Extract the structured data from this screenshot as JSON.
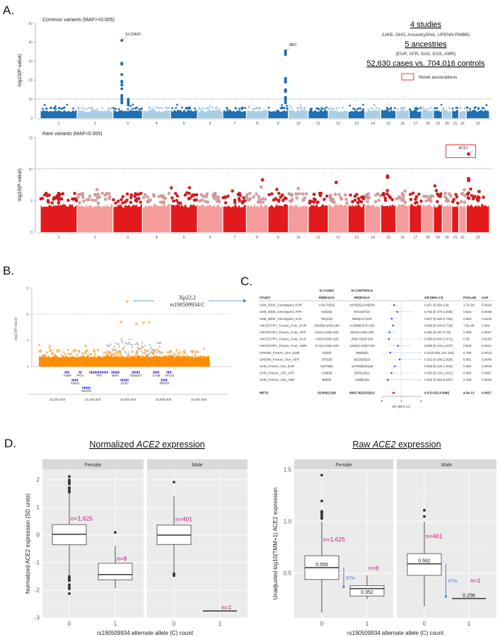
{
  "figure_labels": {
    "a": "A.",
    "b": "B.",
    "c": "C.",
    "d": "D."
  },
  "panel_a_info": {
    "studies": "4 studies",
    "studies_detail": "(UKB, GHS, AncestryDNA, UPENN-PMBB)",
    "ancestries": "5 ancestries",
    "ancestries_detail": "(EUR, AFR, SAS, EAS, AMR)",
    "sample": "52,630 cases vs. 704,016 controls",
    "legend": "Novel associations",
    "legend_color": "#e8393d"
  },
  "manhattan_axis": {
    "chromosomes": [
      "1",
      "2",
      "3",
      "4",
      "5",
      "6",
      "7",
      "8",
      "9",
      "10",
      "11",
      "12",
      "13",
      "14",
      "15",
      "16",
      "17",
      "18",
      "19",
      "20",
      "21",
      "22",
      "23"
    ],
    "chromosome_lengths_mb": [
      248,
      242,
      198,
      190,
      181,
      171,
      159,
      145,
      138,
      134,
      135,
      133,
      114,
      107,
      102,
      90,
      83,
      80,
      59,
      64,
      47,
      51,
      156
    ]
  },
  "chart_data": [
    {
      "id": "common",
      "type": "scatter",
      "title": "Common variants (MAF>=0.005)",
      "ylabel": "-log10(P-value)",
      "ylim": [
        0,
        50
      ],
      "yticks": [
        "0",
        "10",
        "20",
        "30",
        "40",
        "50"
      ],
      "threshold": 10.1,
      "colors": [
        "#1f6fb2",
        "#a9cfe6"
      ],
      "background_max": 5.5,
      "hits": [
        {
          "chr": "3",
          "frac": 0.3,
          "label": "SLC6A20",
          "values": [
            41,
            29,
            28.5,
            23,
            19.5,
            19,
            17.5,
            15.5,
            12,
            11,
            10,
            9,
            8
          ]
        },
        {
          "chr": "3",
          "frac": 0.52,
          "values": [
            10,
            9,
            8,
            7
          ]
        },
        {
          "chr": "9",
          "frac": 0.86,
          "label": "ABO",
          "values": [
            35.5,
            35,
            34,
            33.5,
            21,
            20,
            19.5,
            19,
            15,
            14.5,
            14,
            11,
            10,
            9,
            8
          ]
        }
      ]
    },
    {
      "id": "rare",
      "type": "scatter",
      "title": "Rare variants (MAF<0.005)",
      "ylabel": "-log10(P-value)",
      "ylim": [
        0,
        15
      ],
      "yticks": [
        "0",
        "5",
        "10",
        "15"
      ],
      "threshold": 10.1,
      "colors": [
        "#e31a1c",
        "#f59b9b"
      ],
      "background_max": 5.4,
      "hits": [
        {
          "chr": "23",
          "frac": 0.1,
          "label": "ACE2",
          "novel": true,
          "values": [
            12.4
          ]
        },
        {
          "chr": "23",
          "frac": 0.1,
          "values": [
            8.5,
            8.2,
            6.2
          ]
        },
        {
          "chr": "15",
          "frac": 0.45,
          "values": [
            8.9,
            8.7
          ]
        },
        {
          "chr": "8",
          "frac": 0.75,
          "values": [
            8.3
          ]
        },
        {
          "chr": "12",
          "frac": 0.4,
          "values": [
            7.9
          ]
        }
      ]
    },
    {
      "id": "regional",
      "type": "scatter",
      "ylabel": "-log10(P-value)",
      "ylim": [
        0,
        15
      ],
      "yticks": [
        "0",
        "5",
        "10",
        "15"
      ],
      "threshold": 10.1,
      "xlim": [
        15056000,
        16184000
      ],
      "xticks": [
        15200000,
        15400000,
        15600000,
        15800000,
        16000000
      ],
      "xtick_labels": [
        "15,200,000",
        "15,400,000",
        "15,600,000",
        "15,800,000",
        "16,000,000"
      ],
      "annotation_region": "Xp22.2",
      "annotation_variant": "rs190509934:C",
      "point_color": "#ff8c00",
      "ld_color": "#b3b3b3",
      "lead_points": [
        {
          "pos": 15596000,
          "p": 12.4
        },
        {
          "pos": 15560000,
          "p": 8.5
        },
        {
          "pos": 15648000,
          "p": 8.1
        },
        {
          "pos": 15688000,
          "p": 8.3
        },
        {
          "pos": 15720000,
          "p": 8.4
        }
      ],
      "genes": [
        {
          "name": "ASB9",
          "start": 15244000,
          "end": 15268000,
          "row": 0
        },
        {
          "name": "PIGA",
          "start": 15324000,
          "end": 15336000,
          "row": 0
        },
        {
          "name": "PIR",
          "start": 15384000,
          "end": 15488000,
          "row": 0
        },
        {
          "name": "BMX",
          "start": 15508000,
          "end": 15548000,
          "row": 0
        },
        {
          "name": "TMEM27",
          "start": 15624000,
          "end": 15664000,
          "row": 0
        },
        {
          "name": "CA5B",
          "start": 15744000,
          "end": 15776000,
          "row": 0
        },
        {
          "name": "AP1S2",
          "start": 15820000,
          "end": 15848000,
          "row": 0
        },
        {
          "name": "ASB11",
          "start": 15284000,
          "end": 15316000,
          "row": 1
        },
        {
          "name": "ACE2",
          "start": 15560000,
          "end": 15600000,
          "row": 1
        },
        {
          "name": "ZRSR2",
          "start": 15788000,
          "end": 15824000,
          "row": 1
        },
        {
          "name": "VEGFD",
          "start": 15344000,
          "end": 15384000,
          "row": 2
        }
      ]
    },
    {
      "id": "forest",
      "type": "table",
      "headers": {
        "n_cases": "N CASES",
        "n_controls": "N CONTROLS",
        "study": "STUDY",
        "rr_cases": "RR|RA|AA",
        "rr_controls": "RR|RA|AA",
        "or": "OR [95% CI]",
        "pvalue": "PVALUE",
        "aaf": "AAF"
      },
      "xlabel": "OR (95% CI)",
      "xlim": [
        0,
        2
      ],
      "xticks": [
        "0",
        "1",
        "2"
      ],
      "rows": [
        {
          "study": "UKB_500K_Genotyped_EUR",
          "cases": "14317|35|2",
          "controls": "420556|1244|509",
          "or": 0.627,
          "lo": 0.492,
          "hi": 0.8,
          "or_text": "0.627 [0.492,0.8]",
          "p": "1.7e-04",
          "aaf": "0.0026"
        },
        {
          "study": "UKB_500K_Genotyped_AFR",
          "cases": "616|3|1",
          "controls": "8721|67|16",
          "or": 0.783,
          "lo": 0.375,
          "hi": 1.636,
          "or_text": "0.783 [0.375,1.636]",
          "p": "0.516",
          "aaf": "0.0058"
        },
        {
          "study": "UKB_500K_Genotyped_SAS",
          "cases": "750|12|1",
          "controls": "9565|217|100",
          "or": 0.507,
          "lo": 0.325,
          "hi": 0.792,
          "or_text": "0.507 [0.325,0.792]",
          "p": "0.003",
          "aaf": "0.0219"
        },
        {
          "study": "ANCESTRY_Freeze_Four_EUR",
          "cases": "25306|<100|<100",
          "controls": "113489|327|<100",
          "or": 0.569,
          "lo": 0.444,
          "hi": 0.728,
          "or_text": "0.569 [0.444,0.728]",
          "p": "7.5e-06",
          "aaf": "0.002"
        },
        {
          "study": "ANCESTRY_Freeze_Four_AFR",
          "cases": "1622|<100|<100",
          "controls": "5641|<100|<100",
          "or": 0.392,
          "lo": 0.197,
          "hi": 0.78,
          "or_text": "0.392 [0.197,0.78]",
          "p": "0.008",
          "aaf": "0.0047"
        },
        {
          "study": "ANCESTRY_Freeze_Four_SAS",
          "cases": "<100|<100|<100",
          "controls": "250|<100|<100",
          "or": 0.359,
          "lo": 0.042,
          "hi": 3.071,
          "or_text": "0.359 [0.042,3.071]",
          "p": "0.35",
          "aaf": "0.0195"
        },
        {
          "study": "ANCESTRY_Freeze_Four_AMR",
          "cases": "3742|<100|<100",
          "controls": "12281|<100|<100",
          "or": 0.825,
          "lo": 0.443,
          "hi": 1.537,
          "or_text": "0.825 [0.443,1.537]",
          "p": "0.545",
          "aaf": "0.0021"
        },
        {
          "study": "UPENN_Freeze_One_EUR",
          "cases": "40|0|0",
          "controls": "6993|3|3",
          "or": 0.43,
          "lo": 0.001,
          "hi": 187.431,
          "or_text": "0.43 [0.001,187.431]",
          "p": "0.786",
          "aaf": "0.0013"
        },
        {
          "study": "UPENN_Freeze_One_AFR",
          "cases": "347|2|0",
          "controls": "8518|28|18",
          "or": 0.915,
          "lo": 0.286,
          "hi": 2.928,
          "or_text": "0.915 [0.286,2.928]",
          "p": "0.881",
          "aaf": "0.0045"
        },
        {
          "study": "GHS_Freeze_145_EUR",
          "cases": "5267|9|0",
          "controls": "107839|261|68",
          "or": 0.658,
          "lo": 0.432,
          "hi": 1.003,
          "or_text": "0.658 [0.432,1.003]",
          "p": "0.052",
          "aaf": "0.0019"
        },
        {
          "study": "GHS_Freeze_145_AFR",
          "cases": "128|0|0",
          "controls": "3025|14|11",
          "or": 0.493,
          "lo": 0.126,
          "hi": 1.921,
          "or_text": "0.493 [0.126,1.921]",
          "p": "0.308",
          "aaf": "0.0057"
        },
        {
          "study": "GHS_Freeze_145_AMR",
          "cases": "88|0|0",
          "controls": "1296|11|0",
          "or": 0.304,
          "lo": 0.015,
          "hi": 6.097,
          "or_text": "0.304 [0.015,6.097]",
          "p": "0.436",
          "aaf": "0.0039"
        }
      ],
      "meta": {
        "study": "META",
        "cases": "52294|122|8",
        "controls": "698174|2251|812",
        "or": 0.6,
        "lo": 0.522,
        "hi": 0.689,
        "or_text": "0.6 [0.522,0.689]",
        "p": "4.5e-13",
        "aaf": "0.0027"
      },
      "point_color": "#3b5bdb",
      "meta_color": "#e03131"
    },
    {
      "id": "normalized",
      "type": "box",
      "title_pre": "Normalized ",
      "title_gene": "ACE2",
      "title_post": " expression",
      "ylabel": "Normalized ACE2 expression (SD units)",
      "xlabel": "rs190509934 alternate allele (C) count",
      "ylim": [
        -3,
        2.3
      ],
      "yticks": [
        -3,
        -2,
        -1,
        0,
        1,
        2
      ],
      "facets": [
        "Female",
        "Male"
      ],
      "categories": [
        "0",
        "1"
      ],
      "boxes": [
        {
          "facet": 0,
          "cat": 0,
          "q1": -0.35,
          "median": 0.03,
          "q3": 0.38,
          "wlo": -1.45,
          "whi": 1.5,
          "outliers": [
            2.12,
            2.0,
            1.95,
            1.9,
            1.85,
            1.72,
            1.67,
            1.6,
            1.55,
            -1.5,
            -1.55,
            -1.6,
            -1.65,
            -1.8,
            -1.88,
            -1.95,
            -2.12
          ],
          "n": "n=1,625",
          "label_at": 0.6
        },
        {
          "facet": 0,
          "cat": 1,
          "q1": -1.62,
          "median": -1.43,
          "q3": -1.02,
          "wlo": -1.92,
          "whi": -0.4,
          "outliers": [
            0.1
          ],
          "n": "n=8",
          "label_at": -0.85
        },
        {
          "facet": 1,
          "cat": 0,
          "q1": -0.34,
          "median": 0.0,
          "q3": 0.36,
          "wlo": -1.4,
          "whi": 1.4,
          "outliers": [
            1.92,
            -1.4,
            -1.47
          ],
          "n": "n=401",
          "label_at": 0.58
        },
        {
          "facet": 1,
          "cat": 1,
          "single": -2.75,
          "n": "n=1",
          "label_at": -2.62
        }
      ]
    },
    {
      "id": "raw",
      "type": "box",
      "title_pre": "Raw ",
      "title_gene": "ACE2",
      "title_post": " expression",
      "ylabel": "Unadjusted log10(TMM+1) ACE2 expression",
      "xlabel": "rs190509934 alternate allele (C) count",
      "ylim": [
        0.075,
        1.55
      ],
      "yticks": [
        0.5,
        1.0,
        1.5
      ],
      "ytick_labels": [
        "0.5",
        "1.0",
        "1.5"
      ],
      "facets": [
        "Female",
        "Male"
      ],
      "categories": [
        "0",
        "1"
      ],
      "boxes": [
        {
          "facet": 0,
          "cat": 0,
          "q1": 0.44,
          "median": 0.555,
          "q3": 0.67,
          "wlo": 0.12,
          "whi": 1.0,
          "outliers": [
            1.45,
            1.2,
            1.1,
            1.09,
            1.08,
            1.06,
            1.04,
            1.03
          ],
          "n": "n=1,625",
          "label_at": 0.83,
          "median_label": "0.555",
          "median_label_pos": "above"
        },
        {
          "facet": 0,
          "cat": 1,
          "q1": 0.28,
          "median": 0.352,
          "q3": 0.38,
          "wlo": 0.25,
          "whi": 0.48,
          "outliers": [],
          "n": "n=8",
          "label_at": 0.55,
          "median_label": "0.352",
          "median_label_pos": "below"
        },
        {
          "facet": 1,
          "cat": 0,
          "q1": 0.48,
          "median": 0.592,
          "q3": 0.69,
          "wlo": 0.18,
          "whi": 1.0,
          "outliers": [
            1.11,
            1.05
          ],
          "n": "n=401",
          "label_at": 0.86,
          "median_label": "0.592",
          "median_label_pos": "above"
        },
        {
          "facet": 1,
          "cat": 1,
          "single": 0.256,
          "n": "n=1",
          "label_at": 0.43,
          "median_label": "0.256",
          "median_label_pos": "above"
        }
      ],
      "reductions": [
        {
          "facet": 0,
          "from": 0.555,
          "to": 0.352,
          "label": "37%"
        },
        {
          "facet": 1,
          "from": 0.592,
          "to": 0.256,
          "label": "57%"
        }
      ],
      "arrow_color": "#4472c4"
    }
  ],
  "n_label_color": "#c2187a"
}
